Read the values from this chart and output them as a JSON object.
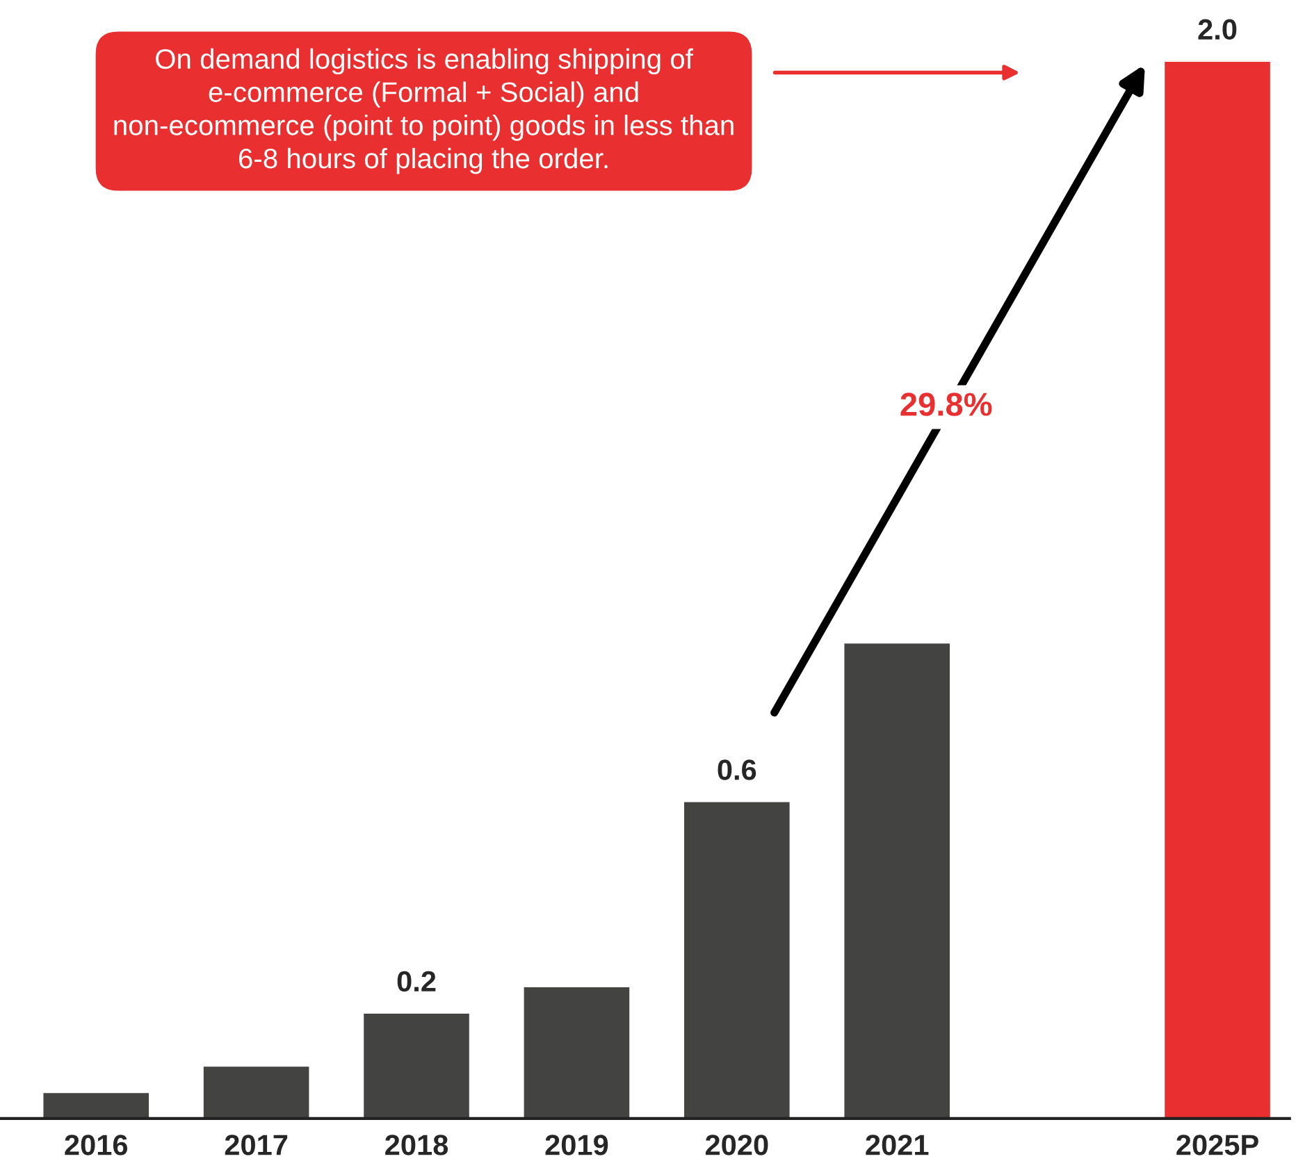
{
  "chart_data": {
    "type": "bar",
    "categories": [
      "2016",
      "2017",
      "2018",
      "2019",
      "2020",
      "2021",
      null,
      "2025P"
    ],
    "values": [
      0.05,
      0.1,
      0.2,
      0.25,
      0.6,
      0.9,
      null,
      2.0
    ],
    "colors": [
      "#434442",
      "#434442",
      "#434442",
      "#434442",
      "#434442",
      "#434442",
      null,
      "#e92f2f"
    ],
    "value_labels": [
      null,
      null,
      "0.2",
      null,
      "0.6",
      null,
      null,
      "2.0"
    ],
    "annotations": [
      "On demand logistics is enabling shipping of e-commerce (Formal + Social) and non-ecommerce (point to point) goods in less than 6-8 hours of placing the order.",
      "29.8%"
    ],
    "grid": false
  }
}
